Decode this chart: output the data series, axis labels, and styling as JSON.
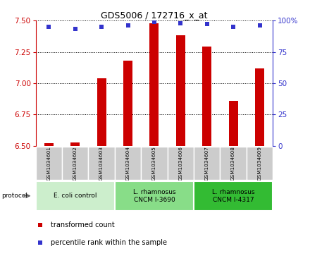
{
  "title": "GDS5006 / 172716_x_at",
  "samples": [
    "GSM1034601",
    "GSM1034602",
    "GSM1034603",
    "GSM1034604",
    "GSM1034605",
    "GSM1034606",
    "GSM1034607",
    "GSM1034608",
    "GSM1034609"
  ],
  "transformed_count": [
    6.52,
    6.53,
    7.04,
    7.18,
    7.48,
    7.38,
    7.29,
    6.86,
    7.12
  ],
  "percentile_rank": [
    95,
    93,
    95,
    96,
    99,
    98,
    97,
    95,
    96
  ],
  "ylim_left": [
    6.5,
    7.5
  ],
  "ylim_right": [
    0,
    100
  ],
  "yticks_left": [
    6.5,
    6.75,
    7.0,
    7.25,
    7.5
  ],
  "yticks_right": [
    0,
    25,
    50,
    75,
    100
  ],
  "bar_color": "#cc0000",
  "dot_color": "#3333cc",
  "protocol_groups": [
    {
      "label": "E. coli control",
      "start": 0,
      "end": 3,
      "color": "#ccffcc"
    },
    {
      "label": "L. rhamnosus\nCNCM I-3690",
      "start": 3,
      "end": 6,
      "color": "#88ee88"
    },
    {
      "label": "L. rhamnosus\nCNCM I-4317",
      "start": 6,
      "end": 9,
      "color": "#44cc44"
    }
  ],
  "legend_items": [
    {
      "label": "transformed count",
      "color": "#cc0000"
    },
    {
      "label": "percentile rank within the sample",
      "color": "#3333cc"
    }
  ],
  "protocol_label": "protocol",
  "sample_box_color": "#cccccc",
  "plot_bg": "#ffffff",
  "bar_width": 0.35
}
